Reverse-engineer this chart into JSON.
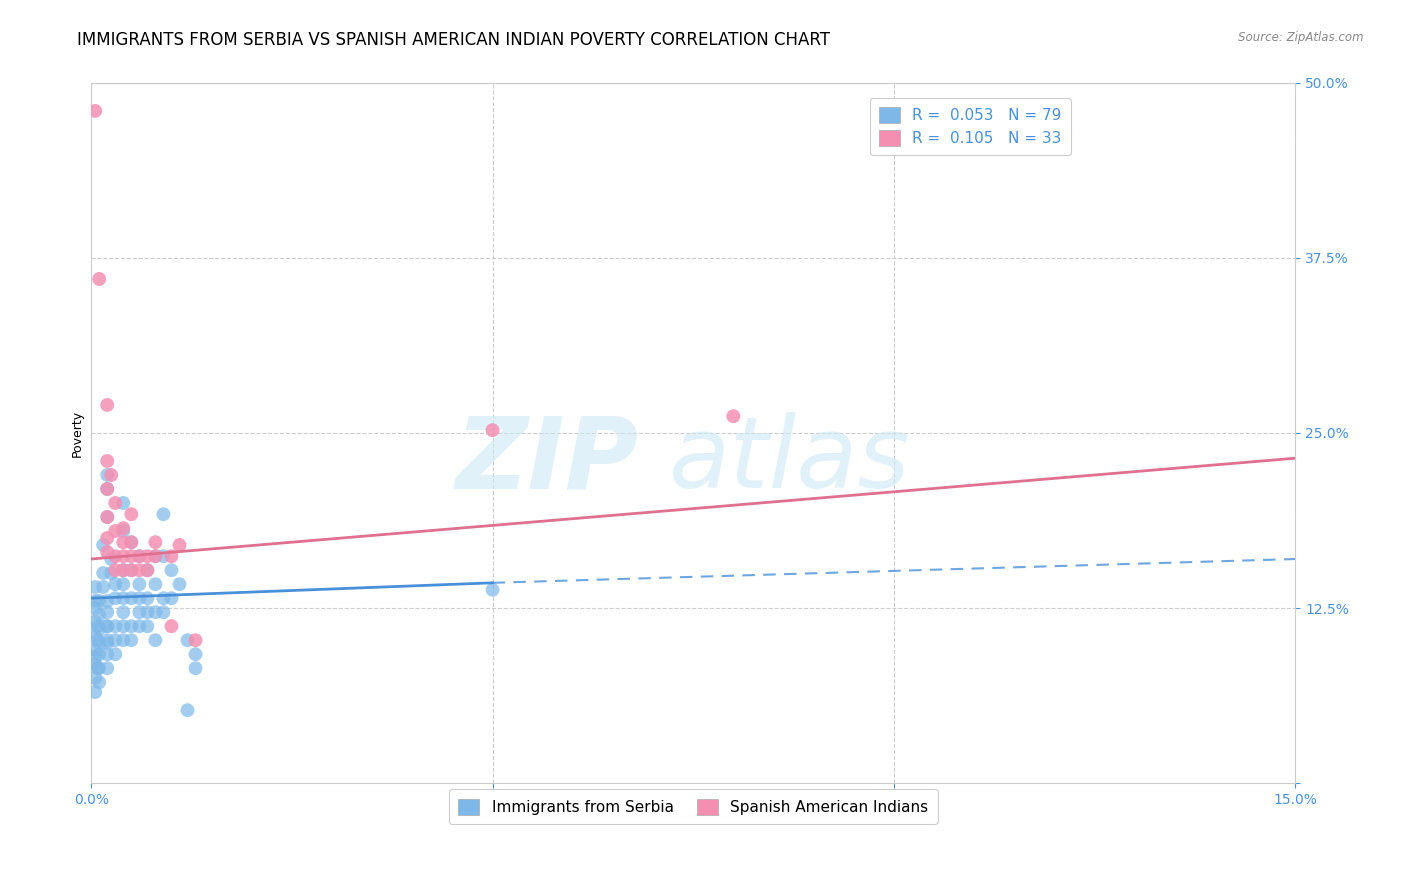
{
  "title": "IMMIGRANTS FROM SERBIA VS SPANISH AMERICAN INDIAN POVERTY CORRELATION CHART",
  "source": "Source: ZipAtlas.com",
  "ylabel_label": "Poverty",
  "serbia_color": "#7db8e8",
  "india_color": "#f48fb1",
  "serbia_trend_color": "#4a90d9",
  "india_trend_color": "#e07090",
  "xlim": [
    0.0,
    0.15
  ],
  "ylim": [
    0.0,
    0.5
  ],
  "serbia_dots": [
    [
      0.0005,
      0.115
    ],
    [
      0.0005,
      0.095
    ],
    [
      0.0005,
      0.105
    ],
    [
      0.0005,
      0.085
    ],
    [
      0.0005,
      0.125
    ],
    [
      0.0005,
      0.075
    ],
    [
      0.0005,
      0.13
    ],
    [
      0.0005,
      0.14
    ],
    [
      0.0005,
      0.065
    ],
    [
      0.0005,
      0.09
    ],
    [
      0.0008,
      0.112
    ],
    [
      0.0008,
      0.082
    ],
    [
      0.0008,
      0.102
    ],
    [
      0.001,
      0.1
    ],
    [
      0.001,
      0.13
    ],
    [
      0.001,
      0.082
    ],
    [
      0.001,
      0.11
    ],
    [
      0.001,
      0.092
    ],
    [
      0.001,
      0.12
    ],
    [
      0.001,
      0.072
    ],
    [
      0.0015,
      0.15
    ],
    [
      0.0015,
      0.17
    ],
    [
      0.0015,
      0.14
    ],
    [
      0.002,
      0.112
    ],
    [
      0.002,
      0.082
    ],
    [
      0.002,
      0.22
    ],
    [
      0.002,
      0.21
    ],
    [
      0.002,
      0.19
    ],
    [
      0.002,
      0.13
    ],
    [
      0.002,
      0.1
    ],
    [
      0.002,
      0.092
    ],
    [
      0.002,
      0.122
    ],
    [
      0.002,
      0.112
    ],
    [
      0.002,
      0.102
    ],
    [
      0.0025,
      0.16
    ],
    [
      0.0025,
      0.15
    ],
    [
      0.003,
      0.142
    ],
    [
      0.003,
      0.112
    ],
    [
      0.003,
      0.102
    ],
    [
      0.003,
      0.092
    ],
    [
      0.003,
      0.132
    ],
    [
      0.004,
      0.18
    ],
    [
      0.004,
      0.2
    ],
    [
      0.004,
      0.152
    ],
    [
      0.004,
      0.132
    ],
    [
      0.004,
      0.112
    ],
    [
      0.004,
      0.102
    ],
    [
      0.004,
      0.142
    ],
    [
      0.004,
      0.122
    ],
    [
      0.005,
      0.172
    ],
    [
      0.005,
      0.152
    ],
    [
      0.005,
      0.132
    ],
    [
      0.005,
      0.112
    ],
    [
      0.005,
      0.102
    ],
    [
      0.006,
      0.162
    ],
    [
      0.006,
      0.142
    ],
    [
      0.006,
      0.122
    ],
    [
      0.006,
      0.112
    ],
    [
      0.006,
      0.132
    ],
    [
      0.007,
      0.152
    ],
    [
      0.007,
      0.132
    ],
    [
      0.007,
      0.122
    ],
    [
      0.007,
      0.112
    ],
    [
      0.008,
      0.162
    ],
    [
      0.008,
      0.142
    ],
    [
      0.008,
      0.122
    ],
    [
      0.008,
      0.102
    ],
    [
      0.009,
      0.192
    ],
    [
      0.009,
      0.162
    ],
    [
      0.009,
      0.132
    ],
    [
      0.009,
      0.122
    ],
    [
      0.01,
      0.152
    ],
    [
      0.01,
      0.132
    ],
    [
      0.011,
      0.142
    ],
    [
      0.012,
      0.052
    ],
    [
      0.012,
      0.102
    ],
    [
      0.013,
      0.092
    ],
    [
      0.013,
      0.082
    ],
    [
      0.05,
      0.138
    ]
  ],
  "india_dots": [
    [
      0.0005,
      0.48
    ],
    [
      0.001,
      0.36
    ],
    [
      0.002,
      0.27
    ],
    [
      0.002,
      0.23
    ],
    [
      0.002,
      0.21
    ],
    [
      0.002,
      0.19
    ],
    [
      0.002,
      0.175
    ],
    [
      0.002,
      0.165
    ],
    [
      0.0025,
      0.22
    ],
    [
      0.003,
      0.2
    ],
    [
      0.003,
      0.18
    ],
    [
      0.003,
      0.162
    ],
    [
      0.003,
      0.152
    ],
    [
      0.004,
      0.172
    ],
    [
      0.004,
      0.162
    ],
    [
      0.004,
      0.152
    ],
    [
      0.004,
      0.182
    ],
    [
      0.005,
      0.192
    ],
    [
      0.005,
      0.152
    ],
    [
      0.005,
      0.162
    ],
    [
      0.005,
      0.172
    ],
    [
      0.006,
      0.152
    ],
    [
      0.006,
      0.162
    ],
    [
      0.007,
      0.162
    ],
    [
      0.007,
      0.152
    ],
    [
      0.008,
      0.162
    ],
    [
      0.008,
      0.172
    ],
    [
      0.01,
      0.162
    ],
    [
      0.01,
      0.112
    ],
    [
      0.011,
      0.17
    ],
    [
      0.013,
      0.102
    ],
    [
      0.05,
      0.252
    ],
    [
      0.08,
      0.262
    ]
  ],
  "serbia_trend_x": [
    0.0,
    0.05
  ],
  "serbia_trend_y": [
    0.132,
    0.143
  ],
  "india_trend_x": [
    0.0,
    0.15
  ],
  "india_trend_y": [
    0.16,
    0.232
  ],
  "dashed_trend_x": [
    0.05,
    0.15
  ],
  "dashed_trend_y": [
    0.143,
    0.16
  ],
  "background_color": "#ffffff",
  "grid_color": "#cccccc",
  "title_fontsize": 12,
  "axis_label_fontsize": 9,
  "tick_fontsize": 10,
  "legend_r1": "R =  0.053   N = 79",
  "legend_r2": "R =  0.105   N = 33",
  "legend_serbia": "Immigrants from Serbia",
  "legend_india": "Spanish American Indians"
}
